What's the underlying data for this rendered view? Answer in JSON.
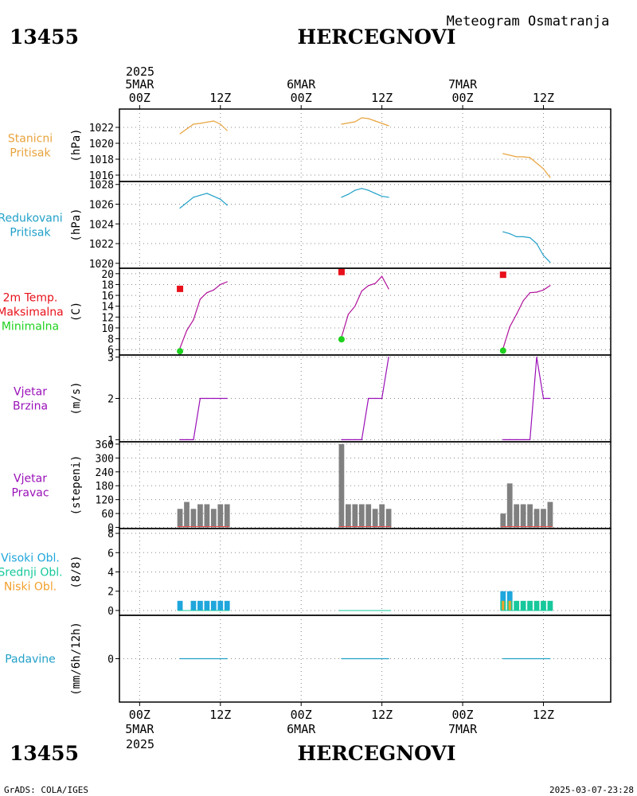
{
  "header": {
    "station_id": "13455",
    "station_name": "HERCEGNOVI",
    "subtitle": "Meteogram Osmatranja"
  },
  "footer": {
    "credit": "GrADS: COLA/IGES",
    "timestamp": "2025-03-07-23:28"
  },
  "colors": {
    "station_pressure": "#e8a33c",
    "reduced_pressure": "#21a0c8",
    "temperature": "#b0129b",
    "tmax": "#e8101a",
    "tmin": "#1fd11f",
    "wind": "#9a10b8",
    "wind_dir_bar": "#808080",
    "clouds_high": "#1fa6dc",
    "clouds_mid": "#16c89b",
    "clouds_low": "#f2a02c",
    "precip": "#21a0c8",
    "frame": "#000000"
  },
  "chart_data": [
    {
      "type": "line",
      "panel": "station_pressure",
      "labels": [
        "Stanicni",
        "Pritisak"
      ],
      "label_colors": [
        "#e8a33c",
        "#e8a33c"
      ],
      "ylabel": "(hPa)",
      "ylim": [
        1015.2,
        1024.3
      ],
      "yticks": [
        1016,
        1018,
        1020,
        1022
      ],
      "x_axis": "hours since 2025-03-05 00Z",
      "series": [
        {
          "x": [
            6,
            8,
            9,
            11,
            12,
            13
          ],
          "values": [
            1021.2,
            1022.4,
            1022.5,
            1022.8,
            1022.4,
            1021.6
          ]
        },
        {
          "x": [
            30,
            32,
            33,
            34,
            35,
            36,
            37
          ],
          "values": [
            1022.4,
            1022.7,
            1023.2,
            1023.1,
            1022.8,
            1022.5,
            1022.2
          ]
        },
        {
          "x": [
            54,
            56,
            57,
            58,
            60,
            61
          ],
          "values": [
            1018.7,
            1018.3,
            1018.3,
            1018.2,
            1016.8,
            1015.7
          ]
        }
      ],
      "color_key": "station_pressure"
    },
    {
      "type": "line",
      "panel": "reduced_pressure",
      "labels": [
        "Redukovani",
        "Pritisak"
      ],
      "label_colors": [
        "#21a0c8",
        "#21a0c8"
      ],
      "ylabel": "(hPa)",
      "ylim": [
        1019.5,
        1028.3
      ],
      "yticks": [
        1020,
        1022,
        1024,
        1026,
        1028
      ],
      "x_axis": "hours since 2025-03-05 00Z",
      "series": [
        {
          "x": [
            6,
            8,
            9,
            10,
            11,
            12,
            13
          ],
          "values": [
            1025.6,
            1026.7,
            1026.9,
            1027.1,
            1026.8,
            1026.5,
            1025.9
          ]
        },
        {
          "x": [
            30,
            31,
            32,
            33,
            34,
            35,
            36,
            37
          ],
          "values": [
            1026.7,
            1027.0,
            1027.4,
            1027.6,
            1027.4,
            1027.1,
            1026.8,
            1026.7
          ]
        },
        {
          "x": [
            54,
            55,
            56,
            57,
            58,
            59,
            60,
            61
          ],
          "values": [
            1023.2,
            1023.0,
            1022.7,
            1022.7,
            1022.6,
            1022.0,
            1020.8,
            1020.1
          ]
        }
      ],
      "color_key": "reduced_pressure"
    },
    {
      "type": "line",
      "panel": "temperature_2m",
      "labels": [
        "2m Temp.",
        "Maksimalna",
        "Minimalna"
      ],
      "label_colors": [
        "#e8101a",
        "#e8101a",
        "#1fd11f"
      ],
      "ylabel": "(C)",
      "ylim": [
        5,
        21
      ],
      "yticks": [
        6,
        8,
        10,
        12,
        14,
        16,
        18,
        20
      ],
      "x_axis": "hours since 2025-03-05 00Z",
      "series": [
        {
          "x": [
            6,
            7,
            8,
            9,
            10,
            11,
            12,
            13
          ],
          "values": [
            6.3,
            9.5,
            11.5,
            15.3,
            16.5,
            17.0,
            18.0,
            18.5
          ]
        },
        {
          "x": [
            30,
            31,
            32,
            33,
            34,
            35,
            36,
            37
          ],
          "values": [
            8.3,
            12.5,
            14.0,
            16.8,
            17.8,
            18.2,
            19.5,
            17.2
          ]
        },
        {
          "x": [
            54,
            55,
            56,
            57,
            58,
            59,
            60,
            61
          ],
          "values": [
            6.2,
            10.2,
            12.5,
            15.0,
            16.5,
            16.6,
            17.0,
            17.8
          ]
        }
      ],
      "tmax": [
        {
          "x": 6,
          "value": 17.2
        },
        {
          "x": 30,
          "value": 20.3
        },
        {
          "x": 54,
          "value": 19.8
        }
      ],
      "tmin": [
        {
          "x": 6,
          "value": 5.7
        },
        {
          "x": 30,
          "value": 7.9
        },
        {
          "x": 54,
          "value": 5.8
        }
      ],
      "color_key": "temperature"
    },
    {
      "type": "line",
      "panel": "wind_speed",
      "labels": [
        "Vjetar",
        "Brzina"
      ],
      "label_colors": [
        "#9a10b8",
        "#9a10b8"
      ],
      "ylabel": "(m/s)",
      "ylim": [
        0.95,
        3.05
      ],
      "yticks": [
        1,
        2,
        3
      ],
      "x_axis": "hours since 2025-03-05 00Z",
      "series": [
        {
          "x": [
            6,
            7,
            8,
            9,
            10,
            11,
            12,
            13
          ],
          "values": [
            1,
            1,
            1,
            2,
            2,
            2,
            2,
            2
          ]
        },
        {
          "x": [
            30,
            31,
            32,
            33,
            34,
            35,
            36,
            37
          ],
          "values": [
            1,
            1,
            1,
            1,
            2,
            2,
            2,
            3
          ]
        },
        {
          "x": [
            54,
            55,
            56,
            57,
            58,
            59,
            60,
            61
          ],
          "values": [
            1,
            1,
            1,
            1,
            1,
            3,
            2,
            2
          ]
        }
      ],
      "color_key": "wind"
    },
    {
      "type": "bar",
      "panel": "wind_direction",
      "labels": [
        "Vjetar",
        "Pravac"
      ],
      "label_colors": [
        "#9a10b8",
        "#9a10b8"
      ],
      "ylabel": "(stepeni)",
      "ylim": [
        -5,
        370
      ],
      "yticks": [
        0,
        60,
        120,
        180,
        240,
        300,
        360
      ],
      "x_axis": "hours since 2025-03-05 00Z",
      "x": [
        6,
        7,
        8,
        9,
        10,
        11,
        12,
        13,
        30,
        31,
        32,
        33,
        34,
        35,
        36,
        37,
        54,
        55,
        56,
        57,
        58,
        59,
        60,
        61
      ],
      "values": [
        80,
        110,
        80,
        100,
        100,
        80,
        100,
        100,
        360,
        100,
        100,
        100,
        100,
        80,
        100,
        80,
        60,
        190,
        100,
        100,
        100,
        80,
        80,
        110
      ],
      "color_key": "wind_dir_bar"
    },
    {
      "type": "bar",
      "panel": "cloudiness",
      "labels": [
        "Visoki Obl.",
        "Srednji Obl.",
        "Niski Obl."
      ],
      "label_colors": [
        "#1fa6dc",
        "#16c89b",
        "#f2a02c"
      ],
      "ylabel": "(8/8)",
      "ylim": [
        -0.5,
        8.5
      ],
      "yticks": [
        0,
        2,
        4,
        6,
        8
      ],
      "x_axis": "hours since 2025-03-05 00Z",
      "x": [
        6,
        7,
        8,
        9,
        10,
        11,
        12,
        13,
        30,
        31,
        32,
        33,
        34,
        35,
        36,
        37,
        54,
        55,
        56,
        57,
        58,
        59,
        60,
        61
      ],
      "series": [
        {
          "name": "Visoki Obl.",
          "values": [
            1,
            0,
            1,
            1,
            1,
            1,
            1,
            1,
            0,
            0,
            0,
            0,
            0,
            0,
            0,
            0,
            2,
            2,
            0,
            0,
            0,
            0,
            0,
            0
          ]
        },
        {
          "name": "Srednji Obl.",
          "values": [
            0,
            0,
            0,
            0,
            0,
            0,
            0,
            0,
            0,
            0,
            0,
            0,
            0,
            0,
            0,
            0,
            1,
            1,
            1,
            1,
            1,
            1,
            1,
            1
          ]
        },
        {
          "name": "Niski Obl.",
          "values": [
            0,
            0,
            0,
            0,
            0,
            0,
            0,
            0,
            0,
            0,
            0,
            0,
            0,
            0,
            0,
            0,
            1,
            1,
            0,
            0,
            0,
            0,
            0,
            0
          ]
        }
      ]
    },
    {
      "type": "line",
      "panel": "precipitation",
      "labels": [
        "Padavine"
      ],
      "label_colors": [
        "#21a0c8"
      ],
      "ylabel": "(mm/6h/12h)",
      "ylim": [
        -1,
        1
      ],
      "yticks": [
        0
      ],
      "x_axis": "hours since 2025-03-05 00Z",
      "series": [
        {
          "x": [
            6,
            13
          ],
          "values": [
            0,
            0
          ]
        },
        {
          "x": [
            30,
            37
          ],
          "values": [
            0,
            0
          ]
        },
        {
          "x": [
            54,
            61
          ],
          "values": [
            0,
            0
          ]
        }
      ],
      "color_key": "precip"
    }
  ],
  "time_axis": {
    "top_year": "2025",
    "bottom_year": "2025",
    "dates": [
      "5MAR",
      "6MAR",
      "7MAR"
    ],
    "hour_labels": [
      "00Z",
      "12Z",
      "00Z",
      "12Z",
      "00Z",
      "12Z"
    ],
    "hour_positions": [
      0,
      12,
      24,
      36,
      48,
      60
    ],
    "x_range": [
      -3,
      70
    ]
  }
}
